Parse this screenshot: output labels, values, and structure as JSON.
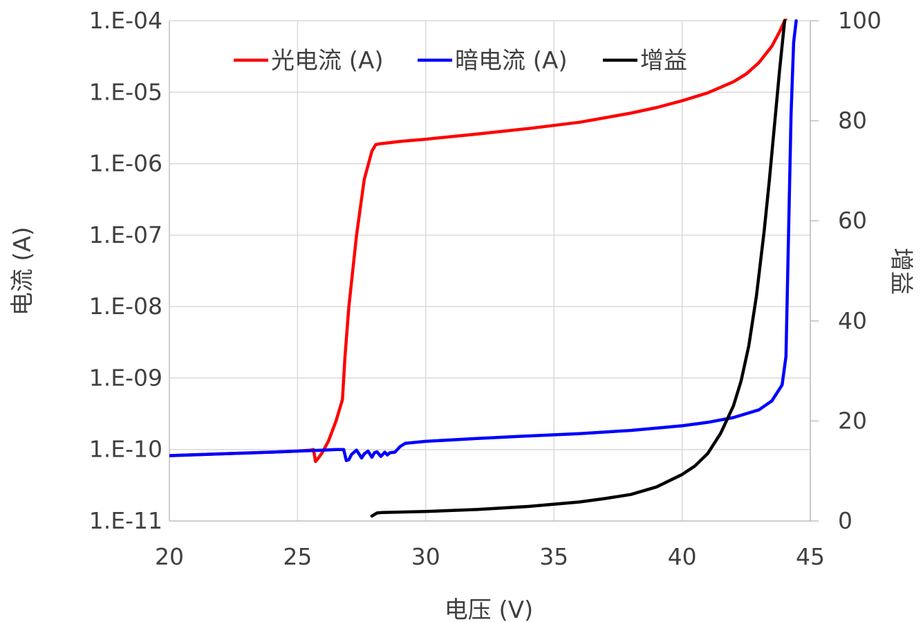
{
  "chart_data": {
    "type": "line",
    "xlabel": "电压 (V)",
    "ylabel": "电流 (A)",
    "y2label": "增益",
    "xlim": [
      20,
      45
    ],
    "xticks": [
      "20",
      "25",
      "30",
      "35",
      "40",
      "45"
    ],
    "ylim": [
      1e-11,
      0.0001
    ],
    "yscale": "log",
    "yticks": [
      "1.E-11",
      "1.E-10",
      "1.E-09",
      "1.E-08",
      "1.E-07",
      "1.E-06",
      "1.E-05",
      "1.E-04"
    ],
    "y2lim": [
      0,
      100
    ],
    "y2ticks": [
      "0",
      "20",
      "40",
      "60",
      "80",
      "100"
    ],
    "grid": true,
    "legend_position": "top",
    "series": [
      {
        "name": "光电流 (A)",
        "axis": "left",
        "color": "#ff0000",
        "x": [
          20,
          22,
          24,
          25,
          25.5,
          25.62,
          25.7,
          25.8,
          25.95,
          26.2,
          26.5,
          26.75,
          26.85,
          27.0,
          27.3,
          27.6,
          27.9,
          28.05,
          28.2,
          28.5,
          29,
          30,
          32,
          34,
          36,
          37,
          38,
          39,
          40,
          41,
          42,
          42.5,
          43,
          43.5,
          43.8,
          44.0,
          44.1
        ],
        "y": [
          8.2e-11,
          8.7e-11,
          9.2e-11,
          9.5e-11,
          9.8e-11,
          1e-10,
          6.8e-11,
          7.5e-11,
          8.9e-11,
          1.3e-10,
          2.5e-10,
          5e-10,
          2e-09,
          1e-08,
          1e-07,
          6e-07,
          1.5e-06,
          1.85e-06,
          1.9e-06,
          1.95e-06,
          2.05e-06,
          2.2e-06,
          2.6e-06,
          3.1e-06,
          3.8e-06,
          4.4e-06,
          5.1e-06,
          6.1e-06,
          7.6e-06,
          9.8e-06,
          1.4e-05,
          1.8e-05,
          2.6e-05,
          4.4e-05,
          7e-05,
          0.0001,
          0.000115
        ]
      },
      {
        "name": "暗电流 (A)",
        "axis": "left",
        "color": "#0000ff",
        "x": [
          20,
          22,
          24,
          25,
          26,
          26.5,
          26.8,
          26.9,
          27.0,
          27.1,
          27.3,
          27.5,
          27.6,
          27.75,
          27.9,
          28.0,
          28.1,
          28.25,
          28.4,
          28.5,
          28.6,
          28.8,
          29.0,
          29.2,
          30,
          32,
          34,
          36,
          38,
          40,
          41,
          42,
          43,
          43.5,
          43.9,
          44.05,
          44.15,
          44.25,
          44.35,
          44.45
        ],
        "y": [
          8.2e-11,
          8.7e-11,
          9.2e-11,
          9.5e-11,
          9.8e-11,
          1e-10,
          1e-10,
          7e-11,
          7.2e-11,
          8.5e-11,
          9.8e-11,
          7.6e-11,
          8.7e-11,
          9.5e-11,
          7.8e-11,
          9e-11,
          9.3e-11,
          8e-11,
          9.2e-11,
          8.4e-11,
          9e-11,
          9.2e-11,
          1.1e-10,
          1.22e-10,
          1.3e-10,
          1.43e-10,
          1.55e-10,
          1.67e-10,
          1.85e-10,
          2.15e-10,
          2.4e-10,
          2.8e-10,
          3.6e-10,
          4.8e-10,
          8e-10,
          2e-09,
          1e-07,
          5e-06,
          5e-05,
          0.0001
        ]
      },
      {
        "name": "增益",
        "axis": "right",
        "color": "#000000",
        "x": [
          27.9,
          28.1,
          28.3,
          30,
          32,
          34,
          36,
          37,
          38,
          39,
          40,
          40.5,
          41,
          41.5,
          42,
          42.3,
          42.6,
          42.9,
          43.2,
          43.4,
          43.6,
          43.8,
          43.9,
          44.0
        ],
        "y": [
          1.0,
          1.6,
          1.7,
          1.9,
          2.3,
          2.9,
          3.8,
          4.5,
          5.3,
          6.8,
          9.3,
          11.0,
          13.5,
          17.5,
          23,
          28,
          35,
          45,
          58,
          68,
          79,
          90,
          95,
          100
        ]
      }
    ]
  }
}
